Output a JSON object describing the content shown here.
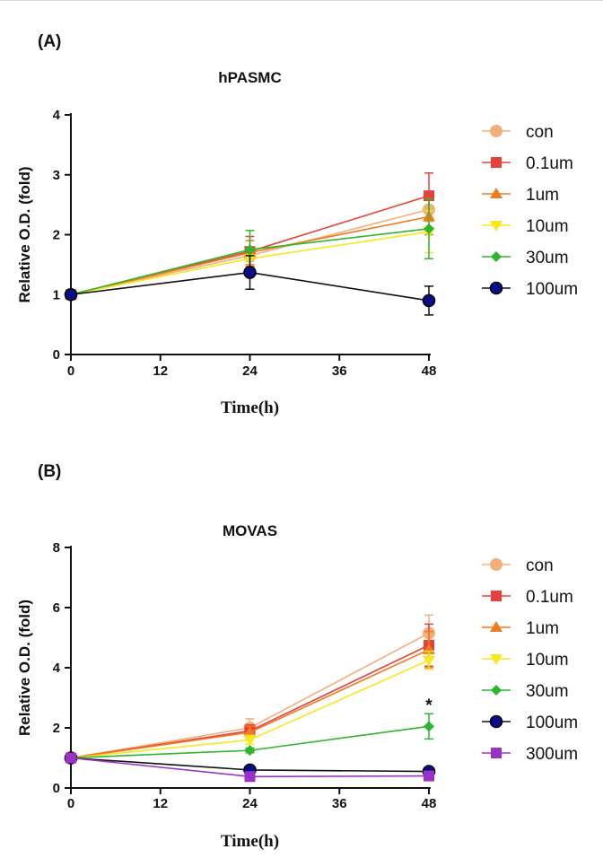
{
  "chart_data": [
    {
      "panel_label": "(A)",
      "type": "line",
      "title": "hPASMC",
      "xlabel": "Time(h)",
      "ylabel": "Relative O.D. (fold)",
      "x": [
        0,
        24,
        48
      ],
      "x_ticks": [
        "0",
        "12",
        "24",
        "36",
        "48"
      ],
      "y_ticks": [
        "0",
        "1",
        "2",
        "3",
        "4"
      ],
      "xlim": [
        0,
        48
      ],
      "ylim": [
        0,
        4
      ],
      "legend_position": "right",
      "series": [
        {
          "name": "con",
          "color": "#F0B07A",
          "marker": "circle",
          "values": [
            1,
            1.65,
            2.42
          ],
          "errors": [
            0,
            0.1,
            0.2
          ]
        },
        {
          "name": "0.1um",
          "color": "#E8413C",
          "marker": "square",
          "values": [
            1,
            1.72,
            2.65
          ],
          "errors": [
            0,
            0.25,
            0.38
          ]
        },
        {
          "name": "1um",
          "color": "#F07A1E",
          "marker": "triangle-up",
          "values": [
            1,
            1.7,
            2.3
          ],
          "errors": [
            0,
            0.2,
            0.3
          ]
        },
        {
          "name": "10um",
          "color": "#F5E81E",
          "marker": "triangle-down",
          "values": [
            1,
            1.6,
            2.05
          ],
          "errors": [
            0,
            0.15,
            0.35
          ]
        },
        {
          "name": "30um",
          "color": "#2FB52F",
          "marker": "diamond",
          "values": [
            1,
            1.75,
            2.1
          ],
          "errors": [
            0,
            0.32,
            0.5
          ]
        },
        {
          "name": "100um",
          "color": "#0A0A8C",
          "marker": "circle-dark",
          "values": [
            1,
            1.37,
            0.9
          ],
          "errors": [
            0,
            0.28,
            0.24
          ]
        }
      ],
      "annotations": []
    },
    {
      "panel_label": "(B)",
      "type": "line",
      "title": "MOVAS",
      "xlabel": "Time(h)",
      "ylabel": "Relative O.D. (fold)",
      "x": [
        0,
        24,
        48
      ],
      "x_ticks": [
        "0",
        "12",
        "24",
        "36",
        "48"
      ],
      "y_ticks": [
        "0",
        "2",
        "4",
        "6",
        "8"
      ],
      "xlim": [
        0,
        48
      ],
      "ylim": [
        0,
        8
      ],
      "legend_position": "right",
      "series": [
        {
          "name": "con",
          "color": "#F0B07A",
          "marker": "circle",
          "values": [
            1,
            2.0,
            5.15
          ],
          "errors": [
            0,
            0.3,
            0.6
          ]
        },
        {
          "name": "0.1um",
          "color": "#E8413C",
          "marker": "square",
          "values": [
            1,
            1.9,
            4.75
          ],
          "errors": [
            0,
            0.2,
            0.7
          ]
        },
        {
          "name": "1um",
          "color": "#F07A1E",
          "marker": "triangle-up",
          "values": [
            1,
            1.85,
            4.6
          ],
          "errors": [
            0,
            0.2,
            0.6
          ]
        },
        {
          "name": "10um",
          "color": "#F5E81E",
          "marker": "triangle-down",
          "values": [
            1,
            1.6,
            4.25
          ],
          "errors": [
            0,
            0.15,
            0.3
          ]
        },
        {
          "name": "30um",
          "color": "#2FB52F",
          "marker": "diamond",
          "values": [
            1,
            1.25,
            2.05
          ],
          "errors": [
            0,
            0.08,
            0.42
          ]
        },
        {
          "name": "100um",
          "color": "#0A0A8C",
          "marker": "circle-dark",
          "values": [
            1,
            0.6,
            0.55
          ],
          "errors": [
            0,
            0.05,
            0.05
          ]
        },
        {
          "name": "300um",
          "color": "#9B32C8",
          "marker": "square",
          "values": [
            1,
            0.38,
            0.4
          ],
          "errors": [
            0,
            0.03,
            0.03
          ]
        }
      ],
      "annotations": [
        {
          "text": "*",
          "x": 48,
          "y": 2.75
        }
      ]
    }
  ]
}
